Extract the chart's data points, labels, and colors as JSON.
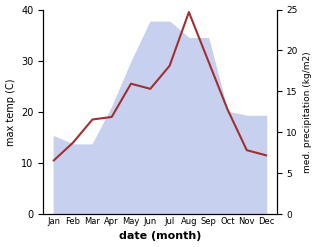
{
  "months": [
    "Jan",
    "Feb",
    "Mar",
    "Apr",
    "May",
    "Jun",
    "Jul",
    "Aug",
    "Sep",
    "Oct",
    "Nov",
    "Dec"
  ],
  "temperature": [
    10.5,
    14.0,
    18.5,
    19.0,
    25.5,
    24.5,
    29.0,
    39.5,
    30.0,
    20.5,
    12.5,
    11.5
  ],
  "precipitation": [
    9.5,
    8.5,
    8.5,
    13.0,
    18.5,
    23.5,
    23.5,
    21.5,
    21.5,
    12.5,
    12.0,
    12.0
  ],
  "temp_color": "#a03030",
  "precip_fill_color": "#c8d0f0",
  "precip_line_color": "#c8d0f0",
  "temp_ylim": [
    0,
    40
  ],
  "precip_ylim": [
    0,
    25
  ],
  "temp_yticks": [
    0,
    10,
    20,
    30,
    40
  ],
  "precip_yticks": [
    0,
    5,
    10,
    15,
    20,
    25
  ],
  "xlabel": "date (month)",
  "ylabel_left": "max temp (C)",
  "ylabel_right": "med. precipitation (kg/m2)",
  "background_color": "#ffffff"
}
